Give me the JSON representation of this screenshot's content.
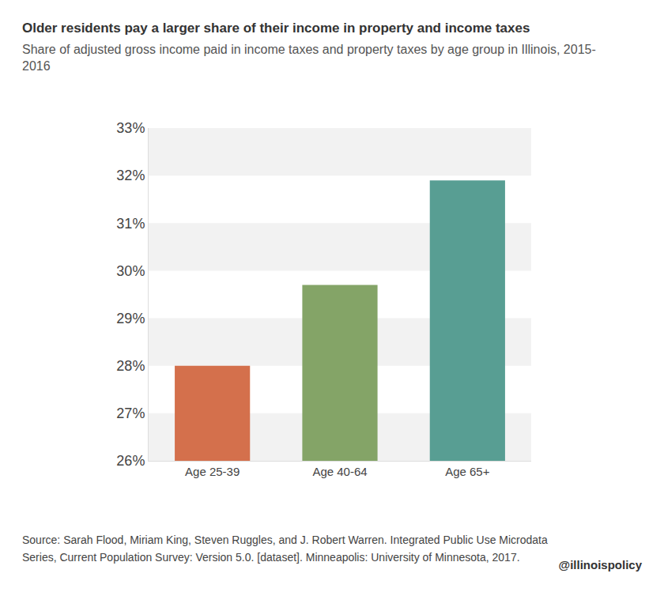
{
  "chart_data": {
    "type": "bar",
    "title": "Older residents pay a larger share of their income in property and income taxes",
    "subtitle": "Share of adjusted gross income paid in income taxes and property taxes by age group in Illinois, 2015-2016",
    "categories": [
      "Age 25-39",
      "Age 40-64",
      "Age 65+"
    ],
    "values": [
      28.0,
      29.7,
      31.9
    ],
    "colors": [
      "#d4704c",
      "#84a467",
      "#589e93"
    ],
    "ylim": [
      26,
      33
    ],
    "yticks": [
      {
        "value": 26,
        "label": "26%"
      },
      {
        "value": 27,
        "label": "27%"
      },
      {
        "value": 28,
        "label": "28%"
      },
      {
        "value": 29,
        "label": "29%"
      },
      {
        "value": 30,
        "label": "30%"
      },
      {
        "value": 31,
        "label": "31%"
      },
      {
        "value": 32,
        "label": "32%"
      },
      {
        "value": 33,
        "label": "33%"
      }
    ],
    "grid": true,
    "annotations": [
      "Source: Sarah Flood, Miriam King, Steven Ruggles, and J. Robert Warren. Integrated Public Use Microdata Series, Current Population Survey: Version 5.0. [dataset]. Minneapolis: University of Minnesota, 2017.",
      "@illinoispolicy"
    ]
  }
}
